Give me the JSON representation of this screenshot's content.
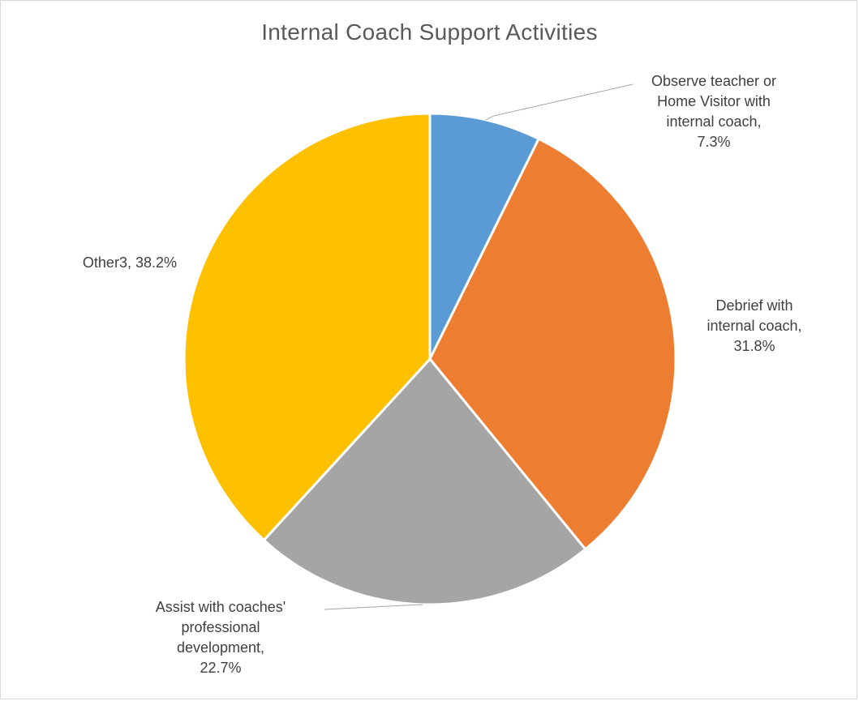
{
  "chart_data": {
    "type": "pie",
    "title": "Internal Coach Support Activities",
    "slices": [
      {
        "label_lines": [
          "Observe teacher or",
          "Home Visitor with",
          "internal coach,",
          "7.3%"
        ],
        "value": 7.3,
        "color": "#5b9bd5"
      },
      {
        "label_lines": [
          "Debrief with",
          "internal coach,",
          "31.8%"
        ],
        "value": 31.8,
        "color": "#ed7d31"
      },
      {
        "label_lines": [
          "Assist with coaches'",
          "professional",
          "development,",
          "22.7%"
        ],
        "value": 22.7,
        "color": "#a5a5a5"
      },
      {
        "label_lines": [
          "Other3, 38.2%"
        ],
        "value": 38.2,
        "color": "#ffc000"
      }
    ],
    "start_angle_deg": 0,
    "direction": "clockwise"
  }
}
